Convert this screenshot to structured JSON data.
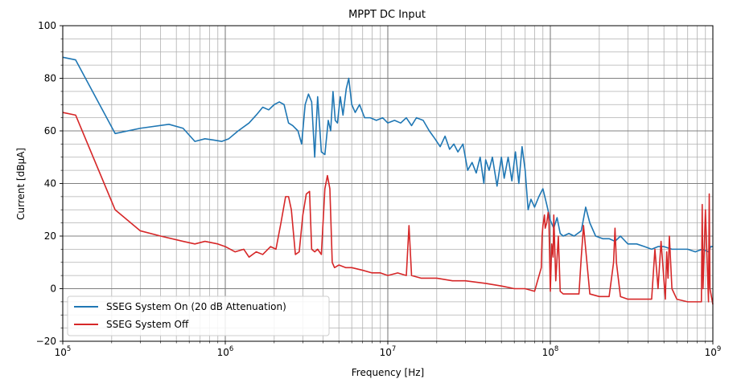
{
  "chart_data": {
    "type": "line",
    "title": "MPPT DC Input",
    "xlabel": "Frequency [Hz]",
    "ylabel": "Current [dBµA]",
    "xscale": "log",
    "xlim": [
      100000,
      1000000000
    ],
    "ylim": [
      -20,
      100
    ],
    "x_ticks": [
      {
        "value": 100000,
        "base": "10",
        "exp": "5"
      },
      {
        "value": 1000000,
        "base": "10",
        "exp": "6"
      },
      {
        "value": 10000000,
        "base": "10",
        "exp": "7"
      },
      {
        "value": 100000000,
        "base": "10",
        "exp": "8"
      },
      {
        "value": 1000000000,
        "base": "10",
        "exp": "9"
      }
    ],
    "y_ticks": [
      "-20",
      "0",
      "20",
      "40",
      "60",
      "80",
      "100"
    ],
    "grid": true,
    "legend_position": "lower-left",
    "series": [
      {
        "name": "SSEG System On (20 dB Attenuation)",
        "color": "#1f77b4",
        "x": [
          100000,
          120000,
          210000,
          300000,
          450000,
          550000,
          650000,
          750000,
          850000,
          950000,
          1050000,
          1200000,
          1400000,
          1550000,
          1700000,
          1850000,
          2000000,
          2150000,
          2300000,
          2450000,
          2600000,
          2800000,
          2950000,
          3100000,
          3250000,
          3400000,
          3550000,
          3700000,
          3900000,
          4100000,
          4300000,
          4450000,
          4600000,
          4750000,
          4900000,
          5100000,
          5300000,
          5550000,
          5750000,
          6000000,
          6300000,
          6700000,
          7200000,
          7800000,
          8500000,
          9300000,
          10000000,
          11000000,
          12000000,
          13000000,
          14000000,
          15000000,
          16500000,
          18000000,
          19500000,
          21000000,
          22500000,
          24000000,
          25500000,
          27000000,
          29000000,
          31000000,
          33000000,
          35000000,
          37000000,
          39000000,
          40000000,
          42000000,
          44000000,
          47000000,
          50000000,
          52000000,
          55000000,
          58000000,
          61000000,
          64000000,
          67000000,
          70000000,
          73000000,
          76000000,
          80000000,
          85000000,
          90000000,
          95000000,
          100000000,
          105000000,
          110000000,
          115000000,
          120000000,
          130000000,
          140000000,
          155000000,
          165000000,
          175000000,
          190000000,
          210000000,
          230000000,
          250000000,
          270000000,
          300000000,
          340000000,
          380000000,
          420000000,
          460000000,
          500000000,
          560000000,
          620000000,
          700000000,
          780000000,
          860000000,
          940000000,
          970000000,
          1000000000
        ],
        "y": [
          88,
          87,
          59,
          61,
          62.5,
          61,
          56,
          57,
          56.5,
          56,
          57,
          60,
          63,
          66,
          69,
          68,
          70,
          71,
          70,
          63,
          62,
          60,
          55,
          70,
          74,
          71,
          50,
          73,
          52,
          51,
          64,
          60,
          75,
          64,
          63,
          73,
          66,
          76,
          80,
          70,
          67,
          70,
          65,
          65,
          64,
          65,
          63,
          64,
          63,
          65,
          62,
          65,
          64,
          60,
          57,
          54,
          58,
          53,
          55,
          52,
          55,
          45,
          48,
          44,
          50,
          40,
          49,
          45,
          50,
          39,
          50,
          42,
          50,
          41,
          52,
          40,
          54,
          45,
          30,
          34,
          31,
          35,
          38,
          32,
          26,
          23,
          27,
          21,
          20,
          21,
          20,
          22,
          31,
          25,
          20,
          19,
          19,
          18,
          20,
          17,
          17,
          16,
          15,
          16,
          16,
          15,
          15,
          15,
          14,
          15,
          14,
          16,
          16
        ]
      },
      {
        "name": "SSEG System Off",
        "color": "#d62728",
        "x": [
          100000,
          120000,
          210000,
          300000,
          400000,
          550000,
          650000,
          750000,
          900000,
          1000000,
          1150000,
          1300000,
          1400000,
          1550000,
          1700000,
          1900000,
          2050000,
          2200000,
          2350000,
          2450000,
          2550000,
          2700000,
          2850000,
          3000000,
          3150000,
          3300000,
          3400000,
          3550000,
          3700000,
          3900000,
          4100000,
          4250000,
          4400000,
          4550000,
          4700000,
          5000000,
          5500000,
          6000000,
          7000000,
          8000000,
          9000000,
          10000000,
          11500000,
          13000000,
          13500000,
          14000000,
          16000000,
          20000000,
          25000000,
          30000000,
          40000000,
          50000000,
          60000000,
          70000000,
          80000000,
          88000000,
          89000000,
          90000000,
          92000000,
          93000000,
          95000000,
          97000000,
          98000000,
          100000000,
          102000000,
          104000000,
          105000000,
          108000000,
          112000000,
          115000000,
          120000000,
          130000000,
          140000000,
          150000000,
          155000000,
          160000000,
          175000000,
          200000000,
          230000000,
          245000000,
          250000000,
          255000000,
          270000000,
          300000000,
          340000000,
          380000000,
          420000000,
          440000000,
          460000000,
          480000000,
          510000000,
          520000000,
          530000000,
          540000000,
          560000000,
          600000000,
          700000000,
          800000000,
          850000000,
          860000000,
          870000000,
          900000000,
          940000000,
          950000000,
          960000000,
          1000000000
        ],
        "y": [
          67,
          66,
          30,
          22,
          20,
          18,
          17,
          18,
          17,
          16,
          14,
          15,
          12,
          14,
          13,
          16,
          15,
          25,
          35,
          35,
          30,
          13,
          14,
          28,
          36,
          37,
          15,
          14,
          15,
          13,
          38,
          43,
          38,
          10,
          8,
          9,
          8,
          8,
          7,
          6,
          6,
          5,
          6,
          5,
          24,
          5,
          4,
          4,
          3,
          3,
          2,
          1,
          0,
          0,
          -1,
          8,
          20,
          24,
          28,
          23,
          25,
          29,
          26,
          -1,
          17,
          12,
          28,
          3,
          20,
          -1,
          -2,
          -2,
          -2,
          -2,
          12,
          24,
          -2,
          -3,
          -3,
          10,
          23,
          10,
          -3,
          -4,
          -4,
          -4,
          -4,
          15,
          0,
          18,
          -4,
          14,
          4,
          20,
          0,
          -4,
          -5,
          -5,
          -5,
          32,
          0,
          30,
          -5,
          36,
          0,
          -6
        ]
      }
    ]
  }
}
